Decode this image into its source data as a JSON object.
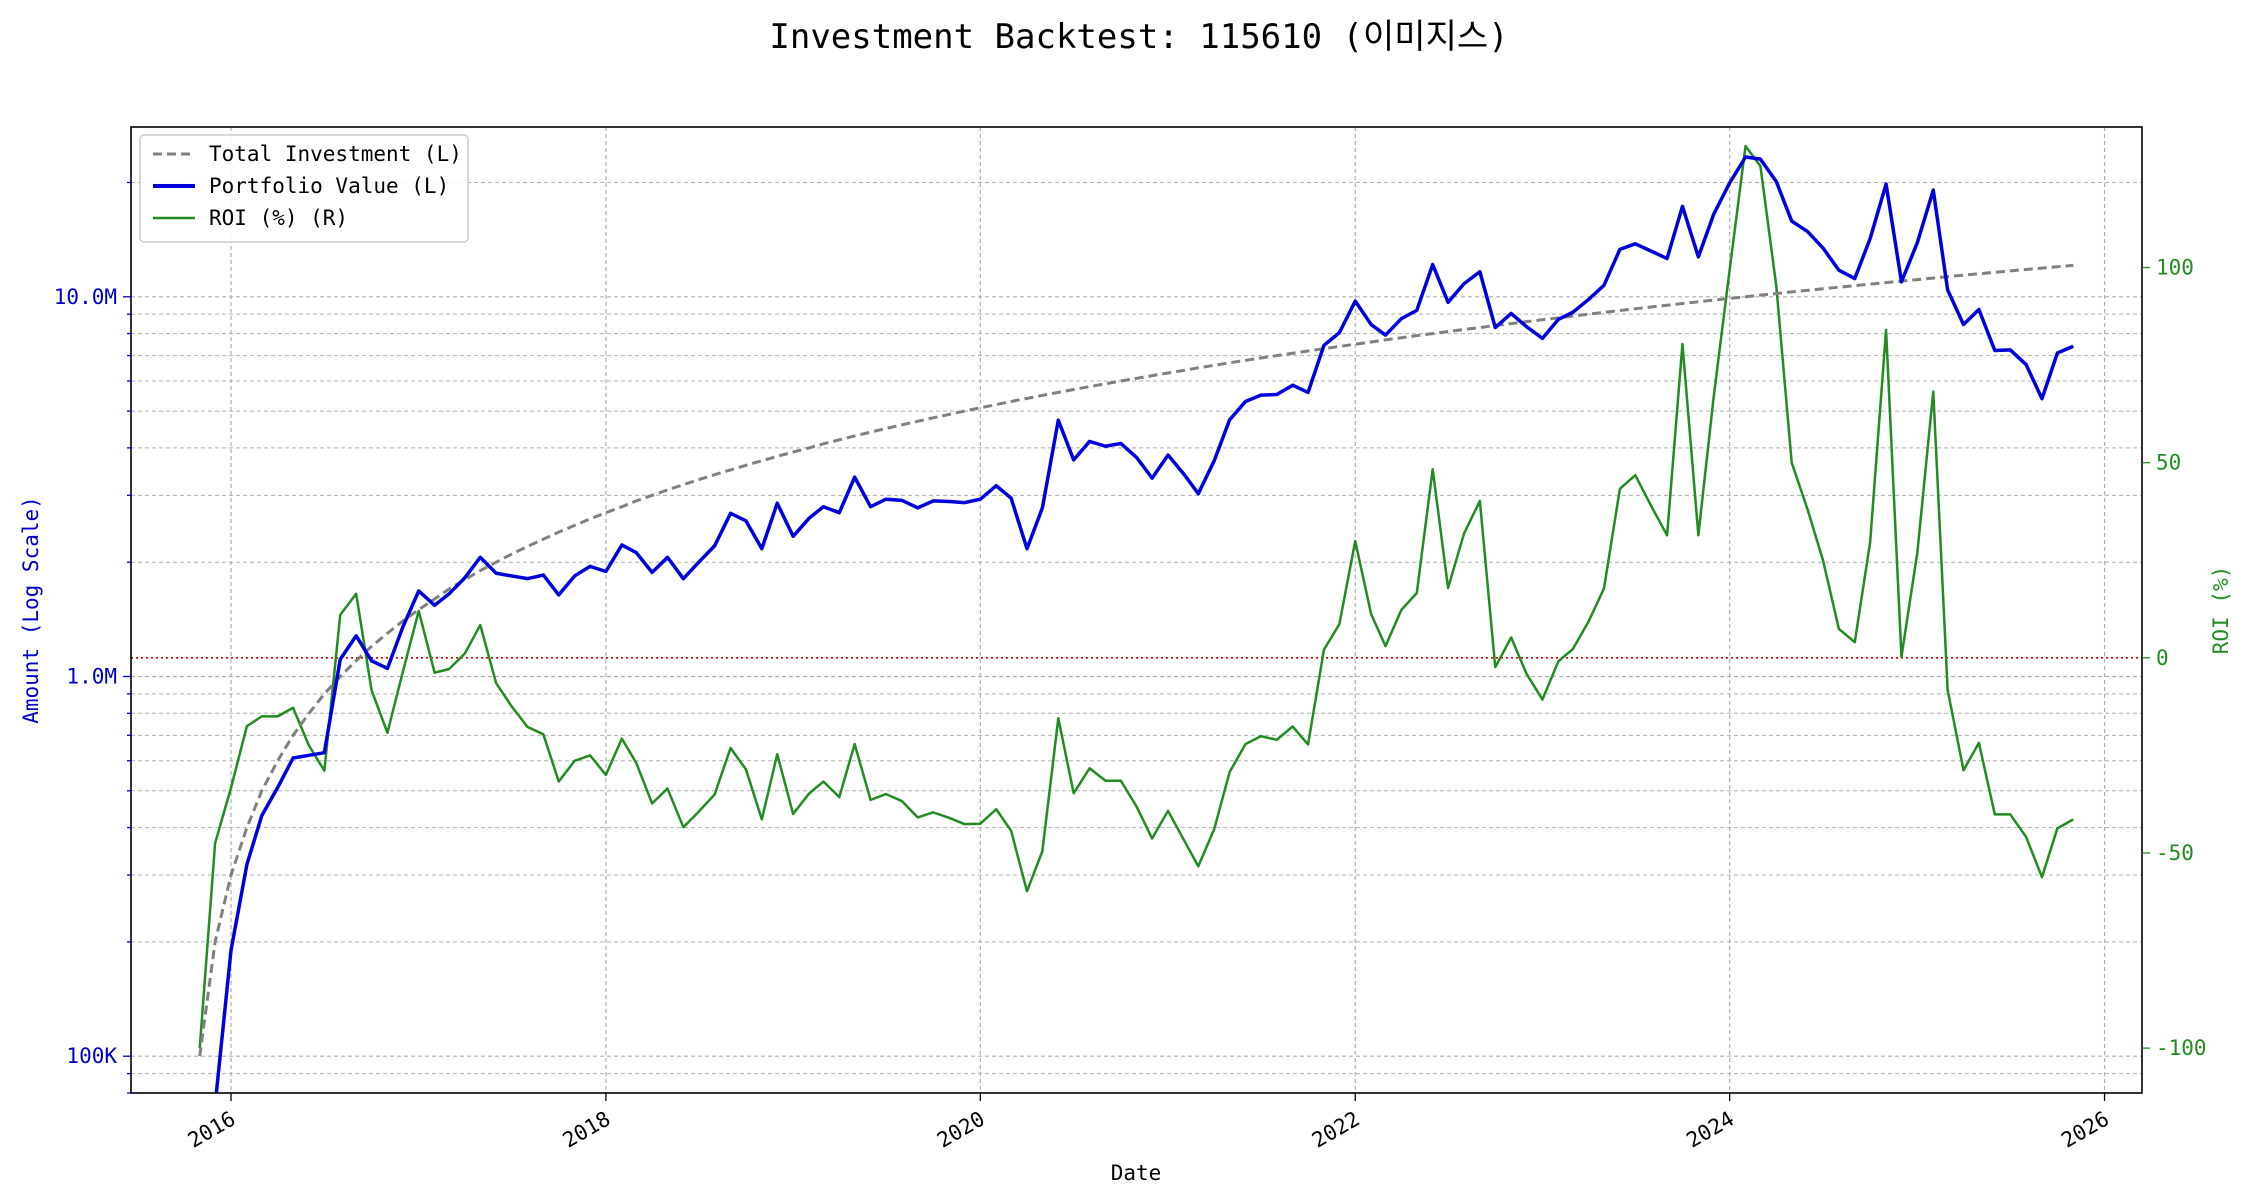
{
  "chart_data": {
    "type": "line",
    "title": "Investment Backtest: 115610 (이미지스)",
    "xlabel": "Date",
    "ylabel_left": "Amount (Log Scale)",
    "ylabel_right": "ROI (%)",
    "x_ticks": [
      "2016",
      "2018",
      "2020",
      "2022",
      "2024",
      "2026"
    ],
    "y_left_ticks": [
      "100K",
      "1.0M",
      "10.0M"
    ],
    "y_right_ticks": [
      "-100",
      "-50",
      "0",
      "50",
      "100"
    ],
    "y_left_scale": "log",
    "y_left_range": [
      80000,
      28000000
    ],
    "y_right_range": [
      -111.5,
      136
    ],
    "x_range": [
      "2015-06-20",
      "2026-03-15"
    ],
    "grid": true,
    "legend_position": "top-left",
    "colors": {
      "total": "#808080",
      "portfolio": "#0000dd",
      "roi": "#228b22",
      "zero_line": "#cc0000",
      "left_axis": "#0000cc",
      "right_axis": "#228b22"
    },
    "dates": [
      "2015-11-01",
      "2015-12-01",
      "2016-01-01",
      "2016-02-01",
      "2016-03-01",
      "2016-04-01",
      "2016-05-01",
      "2016-06-01",
      "2016-07-01",
      "2016-08-01",
      "2016-09-01",
      "2016-10-01",
      "2016-11-01",
      "2016-12-01",
      "2017-01-01",
      "2017-02-01",
      "2017-03-01",
      "2017-04-01",
      "2017-05-01",
      "2017-06-01",
      "2017-07-01",
      "2017-08-01",
      "2017-09-01",
      "2017-10-01",
      "2017-11-01",
      "2017-12-01",
      "2018-01-01",
      "2018-02-01",
      "2018-03-01",
      "2018-04-01",
      "2018-05-01",
      "2018-06-01",
      "2018-07-01",
      "2018-08-01",
      "2018-09-01",
      "2018-10-01",
      "2018-11-01",
      "2018-12-01",
      "2019-01-01",
      "2019-02-01",
      "2019-03-01",
      "2019-04-01",
      "2019-05-01",
      "2019-06-01",
      "2019-07-01",
      "2019-08-01",
      "2019-09-01",
      "2019-10-01",
      "2019-11-01",
      "2019-12-01",
      "2020-01-01",
      "2020-02-01",
      "2020-03-01",
      "2020-04-01",
      "2020-05-01",
      "2020-06-01",
      "2020-07-01",
      "2020-08-01",
      "2020-09-01",
      "2020-10-01",
      "2020-11-01",
      "2020-12-01",
      "2021-01-01",
      "2021-02-01",
      "2021-03-01",
      "2021-04-01",
      "2021-05-01",
      "2021-06-01",
      "2021-07-01",
      "2021-08-01",
      "2021-09-01",
      "2021-10-01",
      "2021-11-01",
      "2021-12-01",
      "2022-01-01",
      "2022-02-01",
      "2022-03-01",
      "2022-04-01",
      "2022-05-01",
      "2022-06-01",
      "2022-07-01",
      "2022-08-01",
      "2022-09-01",
      "2022-10-01",
      "2022-11-01",
      "2022-12-01",
      "2023-01-01",
      "2023-02-01",
      "2023-03-01",
      "2023-04-01",
      "2023-05-01",
      "2023-06-01",
      "2023-07-01",
      "2023-08-01",
      "2023-09-01",
      "2023-10-01",
      "2023-11-01",
      "2023-12-01",
      "2024-01-01",
      "2024-02-01",
      "2024-03-01",
      "2024-04-01",
      "2024-05-01",
      "2024-06-01",
      "2024-07-01",
      "2024-08-01",
      "2024-09-01",
      "2024-10-01",
      "2024-11-01",
      "2024-12-01",
      "2025-01-01",
      "2025-02-01",
      "2025-03-01",
      "2025-04-01",
      "2025-05-01",
      "2025-06-01",
      "2025-07-01",
      "2025-08-01",
      "2025-09-01",
      "2025-10-01",
      "2025-11-01"
    ],
    "series": [
      {
        "name": "Total Investment (L)",
        "values": [
          100000,
          200000,
          300000,
          400000,
          500000,
          600000,
          700000,
          800000,
          900000,
          1000000,
          1100000,
          1200000,
          1300000,
          1400000,
          1500000,
          1600000,
          1700000,
          1800000,
          1900000,
          2000000,
          2100000,
          2200000,
          2300000,
          2400000,
          2500000,
          2600000,
          2700000,
          2800000,
          2900000,
          3000000,
          3100000,
          3200000,
          3300000,
          3400000,
          3500000,
          3600000,
          3700000,
          3800000,
          3900000,
          4000000,
          4100000,
          4200000,
          4300000,
          4400000,
          4500000,
          4600000,
          4700000,
          4800000,
          4900000,
          5000000,
          5100000,
          5200000,
          5300000,
          5400000,
          5500000,
          5600000,
          5700000,
          5800000,
          5900000,
          6000000,
          6100000,
          6200000,
          6300000,
          6400000,
          6500000,
          6600000,
          6700000,
          6800000,
          6900000,
          7000000,
          7100000,
          7200000,
          7300000,
          7400000,
          7500000,
          7600000,
          7700000,
          7800000,
          7900000,
          8000000,
          8100000,
          8200000,
          8300000,
          8400000,
          8500000,
          8600000,
          8700000,
          8800000,
          8900000,
          9000000,
          9100000,
          9200000,
          9300000,
          9400000,
          9500000,
          9600000,
          9700000,
          9800000,
          9900000,
          10000000,
          10100000,
          10200000,
          10300000,
          10400000,
          10500000,
          10600000,
          10700000,
          10800000,
          10900000,
          11000000,
          11100000,
          11200000,
          11300000,
          11400000,
          11500000,
          11600000,
          11700000,
          11800000,
          11900000,
          12000000,
          12100000
        ]
      },
      {
        "name": "Portfolio Value (L)",
        "values": [
          0,
          60000,
          190000,
          320000,
          430000,
          510000,
          610000,
          620000,
          630000,
          1110000,
          1280000,
          1100000,
          1050000,
          1350000,
          1680000,
          1540000,
          1650000,
          1820000,
          2060000,
          1870000,
          1840000,
          1810000,
          1850000,
          1640000,
          1840000,
          1950000,
          1890000,
          2220000,
          2120000,
          1880000,
          2060000,
          1810000,
          2000000,
          2210000,
          2690000,
          2570000,
          2170000,
          2860000,
          2340000,
          2610000,
          2800000,
          2700000,
          3350000,
          2800000,
          2930000,
          2910000,
          2780000,
          2900000,
          2890000,
          2870000,
          2930000,
          3180000,
          2950000,
          2170000,
          2780000,
          4730000,
          3720000,
          4160000,
          4040000,
          4110000,
          3770000,
          3330000,
          3830000,
          3410000,
          3030000,
          3700000,
          4740000,
          5300000,
          5510000,
          5530000,
          5850000,
          5600000,
          7450000,
          8040000,
          9740000,
          8450000,
          7930000,
          8760000,
          9210000,
          12160000,
          9670000,
          10820000,
          11640000,
          8300000,
          9040000,
          8340000,
          7770000,
          8720000,
          9100000,
          9840000,
          10720000,
          13330000,
          13790000,
          13190000,
          12610000,
          17300000,
          12740000,
          16510000,
          19940000,
          23340000,
          23050000,
          20110000,
          15820000,
          14850000,
          13440000,
          11750000,
          11170000,
          14240000,
          19810000,
          10950000,
          13890000,
          19100000,
          10430000,
          8450000,
          9260000,
          7220000,
          7250000,
          6630000,
          5390000,
          7110000,
          7410000
        ]
      },
      {
        "name": "ROI (%) (R)",
        "values": [
          -100,
          -47.5,
          -33.3,
          -17.5,
          -15.0,
          -15.0,
          -12.8,
          -22.5,
          -28.9,
          11.0,
          16.4,
          -8.3,
          -19.2,
          -3.6,
          12.0,
          -3.8,
          -2.9,
          1.1,
          8.4,
          -6.5,
          -12.4,
          -17.7,
          -19.6,
          -31.7,
          -26.4,
          -25.0,
          -30.0,
          -20.7,
          -26.9,
          -37.3,
          -33.5,
          -43.4,
          -39.4,
          -35.0,
          -23.1,
          -28.6,
          -41.4,
          -24.7,
          -40.0,
          -34.8,
          -31.7,
          -35.7,
          -22.1,
          -36.4,
          -34.9,
          -36.7,
          -40.9,
          -39.6,
          -41.0,
          -42.6,
          -42.5,
          -38.8,
          -44.3,
          -59.8,
          -49.5,
          -15.5,
          -34.7,
          -28.3,
          -31.5,
          -31.5,
          -38.2,
          -46.3,
          -39.2,
          -46.7,
          -53.4,
          -43.9,
          -29.3,
          -22.1,
          -20.1,
          -21.0,
          -17.6,
          -22.2,
          2.1,
          8.6,
          29.9,
          11.2,
          3.0,
          12.3,
          16.6,
          48.3,
          17.9,
          31.8,
          40.2,
          -2.4,
          5.2,
          -4.1,
          -10.7,
          -0.9,
          2.2,
          9.3,
          17.8,
          43.3,
          46.8,
          38.9,
          31.4,
          80.4,
          31.4,
          67.0,
          99.4,
          131.1,
          126.0,
          95.2,
          50.0,
          38.0,
          25.0,
          7.4,
          4.0,
          29.7,
          84.0,
          0.3,
          27.0,
          68.2,
          -8.2,
          -28.8,
          -21.8,
          -40.1,
          -40.1,
          -45.9,
          -56.2,
          -43.7,
          -41.4
        ]
      }
    ]
  }
}
